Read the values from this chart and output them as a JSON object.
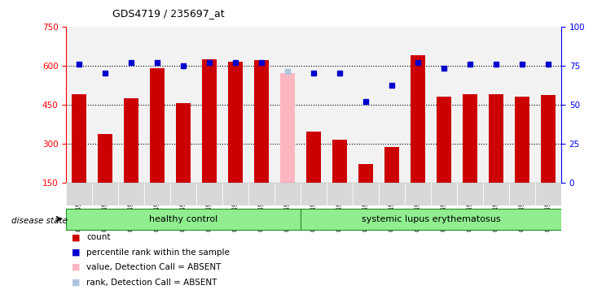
{
  "title": "GDS4719 / 235697_at",
  "samples": [
    "GSM349729",
    "GSM349730",
    "GSM349734",
    "GSM349739",
    "GSM349742",
    "GSM349743",
    "GSM349744",
    "GSM349745",
    "GSM349746",
    "GSM349747",
    "GSM349748",
    "GSM349749",
    "GSM349764",
    "GSM349765",
    "GSM349766",
    "GSM349767",
    "GSM349768",
    "GSM349769",
    "GSM349770"
  ],
  "bar_values": [
    490,
    335,
    475,
    590,
    455,
    625,
    615,
    620,
    570,
    345,
    315,
    220,
    285,
    640,
    480,
    490,
    490,
    480,
    485
  ],
  "absent_indices": [
    8
  ],
  "blue_dot_values": [
    76,
    70,
    77,
    77,
    75,
    77,
    77,
    77,
    71,
    70,
    70,
    52,
    62,
    77,
    73,
    76,
    76,
    76,
    76
  ],
  "group_healthy_count": 9,
  "group_lupus_count": 10,
  "group_labels": [
    "healthy control",
    "systemic lupus erythematosus"
  ],
  "group_colors": [
    "#90EE90",
    "#90EE90"
  ],
  "ylim_left": [
    150,
    750
  ],
  "ylim_right": [
    0,
    100
  ],
  "yticks_left": [
    150,
    300,
    450,
    600,
    750
  ],
  "yticks_right": [
    0,
    25,
    50,
    75,
    100
  ],
  "hgrid_lines": [
    300,
    450,
    600
  ],
  "bar_color": "#CC0000",
  "absent_bar_color": "#FFB6C1",
  "dot_color": "#0000CC",
  "absent_dot_color": "#B0C4DE",
  "disease_state_label": "disease state",
  "legend_items": [
    {
      "label": "count",
      "color": "#CC0000"
    },
    {
      "label": "percentile rank within the sample",
      "color": "#0000CC"
    },
    {
      "label": "value, Detection Call = ABSENT",
      "color": "#FFB6C1"
    },
    {
      "label": "rank, Detection Call = ABSENT",
      "color": "#B0C4DE"
    }
  ]
}
